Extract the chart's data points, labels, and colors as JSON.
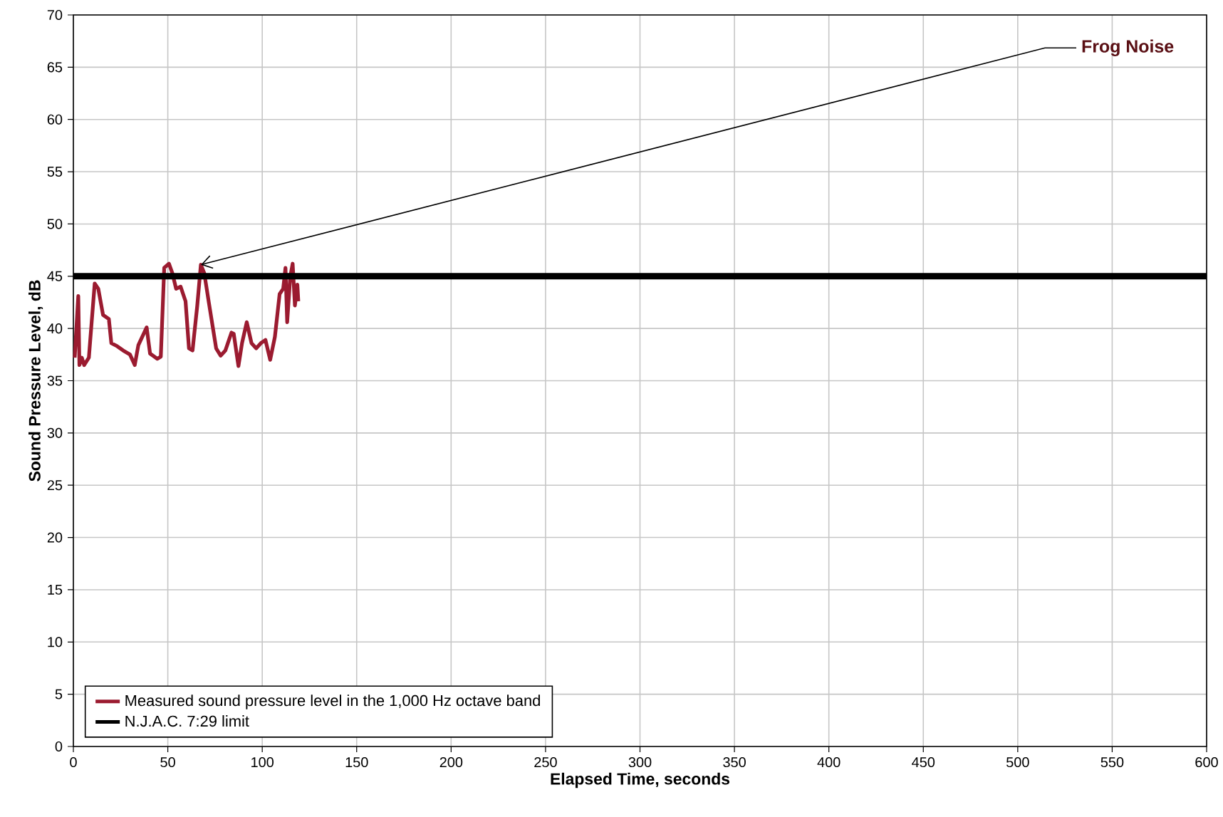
{
  "chart_data": {
    "type": "line",
    "xlabel": "Elapsed Time, seconds",
    "ylabel": "Sound Pressure Level, dB",
    "x": [
      0.7,
      2.6,
      3.2,
      4.5,
      5.7,
      8.2,
      11.3,
      13.2,
      15.7,
      18.8,
      20.1,
      23.2,
      26.3,
      30.0,
      32.5,
      34.4,
      38.8,
      40.6,
      44.4,
      46.3,
      48.1,
      50.6,
      52.4,
      54.4,
      56.8,
      59.4,
      61.2,
      63.1,
      65.6,
      67.5,
      69.3,
      71.8,
      75.6,
      78.0,
      80.5,
      83.7,
      84.9,
      87.4,
      89.3,
      91.8,
      94.3,
      96.8,
      99.3,
      101.7,
      104.2,
      106.7,
      109.2,
      111.1,
      112.3,
      113.2,
      114.8,
      116.1,
      117.3,
      118.6,
      119.1
    ],
    "series": [
      {
        "name": "Measured sound pressure level in the 1,000 Hz octave band",
        "color": "#9b1b30",
        "values": [
          37.2,
          43.1,
          36.5,
          37.2,
          36.5,
          37.2,
          44.3,
          43.8,
          41.3,
          40.9,
          38.6,
          38.3,
          37.9,
          37.5,
          36.5,
          38.4,
          40.1,
          37.6,
          37.1,
          37.3,
          45.8,
          46.2,
          45.3,
          43.8,
          44.0,
          42.6,
          38.1,
          37.9,
          42.2,
          46.1,
          45.3,
          42.4,
          38.1,
          37.4,
          37.9,
          39.6,
          39.5,
          36.4,
          38.6,
          40.6,
          38.6,
          38.1,
          38.6,
          38.9,
          37.0,
          39.2,
          43.3,
          43.8,
          45.8,
          40.6,
          44.9,
          46.2,
          42.2,
          44.2,
          42.6
        ]
      },
      {
        "name": "N.J.A.C. 7:29 limit",
        "color": "#000000",
        "x": [
          0,
          600
        ],
        "values": [
          45,
          45
        ]
      }
    ],
    "annotations": [
      {
        "text": "Frog Noise",
        "x": 67.5,
        "y": 46.1
      }
    ],
    "xlim": [
      0,
      600
    ],
    "ylim": [
      0,
      70
    ],
    "xticks": [
      0,
      50,
      100,
      150,
      200,
      250,
      300,
      350,
      400,
      450,
      500,
      550,
      600
    ],
    "yticks": [
      0,
      5,
      10,
      15,
      20,
      25,
      30,
      35,
      40,
      45,
      50,
      55,
      60,
      65,
      70
    ],
    "grid": true,
    "legend": "bottom left",
    "marker": "none",
    "line_style": "solid"
  }
}
